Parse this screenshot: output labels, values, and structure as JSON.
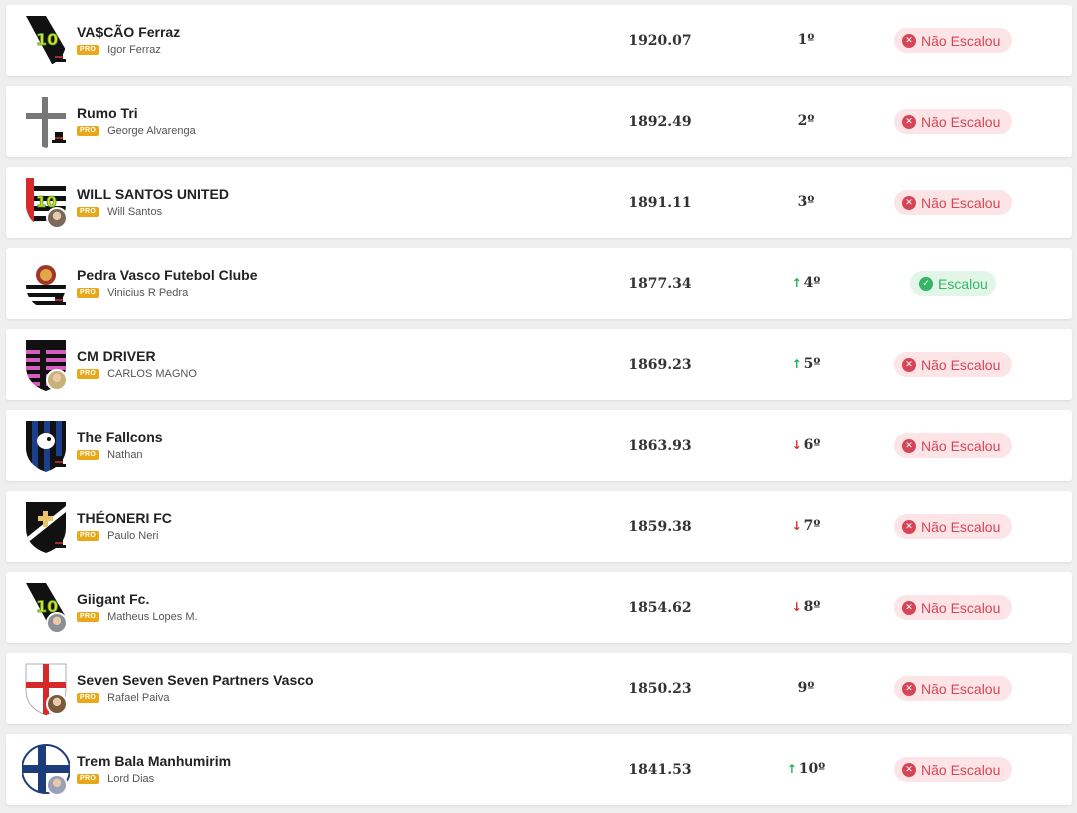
{
  "teams": [
    {
      "name": "VA$CÃO Ferraz",
      "pro_label": "PRO",
      "owner": "Igor Ferraz",
      "score": "1920.07",
      "position": "1º",
      "trend": "",
      "status": "Não Escalou",
      "escalou": false,
      "crest": "vasco-10",
      "hat": true,
      "avatar": false
    },
    {
      "name": "Rumo Tri",
      "pro_label": "PRO",
      "owner": "George Alvarenga",
      "score": "1892.49",
      "position": "2º",
      "trend": "",
      "status": "Não Escalou",
      "escalou": false,
      "crest": "cross-grey",
      "hat": true,
      "avatar": false
    },
    {
      "name": "WILL SANTOS UNITED",
      "pro_label": "PRO",
      "owner": "Will Santos",
      "score": "1891.11",
      "position": "3º",
      "trend": "",
      "status": "Não Escalou",
      "escalou": false,
      "crest": "stripes-red",
      "hat": false,
      "avatar": true
    },
    {
      "name": "Pedra Vasco Futebol Clube",
      "pro_label": "PRO",
      "owner": "Vinicius R Pedra",
      "score": "1877.34",
      "position": "4º",
      "trend": "up",
      "status": "Escalou",
      "escalou": true,
      "crest": "lion-stripes",
      "hat": true,
      "avatar": false
    },
    {
      "name": "CM DRIVER",
      "pro_label": "PRO",
      "owner": "CARLOS MAGNO",
      "score": "1869.23",
      "position": "5º",
      "trend": "up",
      "status": "Não Escalou",
      "escalou": false,
      "crest": "pink-stripes",
      "hat": false,
      "avatar": true
    },
    {
      "name": "The Fallcons",
      "pro_label": "PRO",
      "owner": "Nathan",
      "score": "1863.93",
      "position": "6º",
      "trend": "down",
      "status": "Não Escalou",
      "escalou": false,
      "crest": "falcon",
      "hat": true,
      "avatar": false
    },
    {
      "name": "THÉONERI FC",
      "pro_label": "PRO",
      "owner": "Paulo Neri",
      "score": "1859.38",
      "position": "7º",
      "trend": "down",
      "status": "Não Escalou",
      "escalou": false,
      "crest": "vasco-cross",
      "hat": true,
      "avatar": false
    },
    {
      "name": "Giigant Fc.",
      "pro_label": "PRO",
      "owner": "Matheus Lopes M.",
      "score": "1854.62",
      "position": "8º",
      "trend": "down",
      "status": "Não Escalou",
      "escalou": false,
      "crest": "vasco-10",
      "hat": false,
      "avatar": true
    },
    {
      "name": "Seven Seven Seven Partners Vasco",
      "pro_label": "PRO",
      "owner": "Rafael Paiva",
      "score": "1850.23",
      "position": "9º",
      "trend": "",
      "status": "Não Escalou",
      "escalou": false,
      "crest": "red-cross",
      "hat": false,
      "avatar": true
    },
    {
      "name": "Trem Bala Manhumirim",
      "pro_label": "PRO",
      "owner": "Lord Dias",
      "score": "1841.53",
      "position": "10º",
      "trend": "up",
      "status": "Não Escalou",
      "escalou": false,
      "crest": "nordic-blue",
      "hat": false,
      "avatar": true
    }
  ],
  "icons": {
    "trend_up": "arrow-up-icon",
    "trend_down": "arrow-down-icon",
    "status_no": "x-circle-icon",
    "status_yes": "check-circle-icon"
  },
  "colors": {
    "pro_badge": "#e8a818",
    "status_no": "#d64555",
    "status_yes": "#36b566",
    "trend_up": "#27ae60",
    "trend_down": "#d32f2f"
  }
}
